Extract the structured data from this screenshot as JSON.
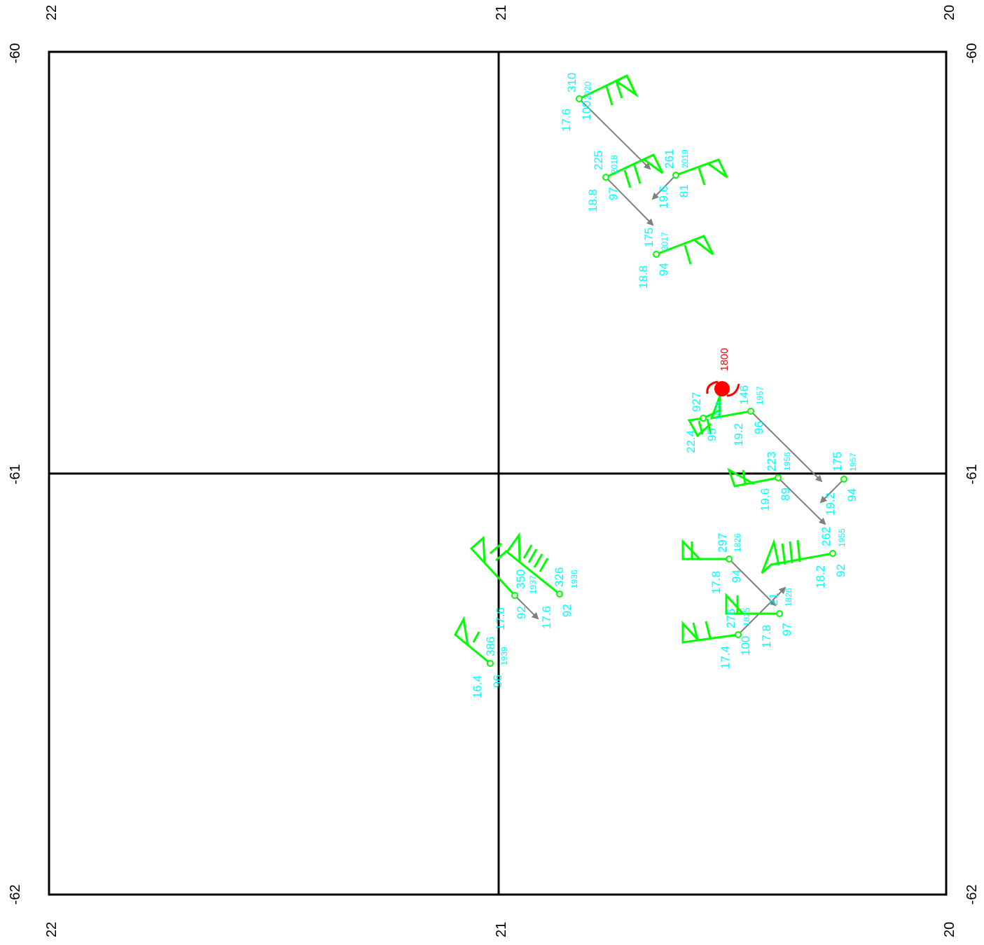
{
  "axes": {
    "lon_labels": [
      "22",
      "21",
      "20"
    ],
    "lat_labels": [
      "-60",
      "-61",
      "-62"
    ]
  },
  "colors": {
    "barb": "#00ff00",
    "text": "#00ffff",
    "motion": "#808080",
    "storm": "#ff0000",
    "frame": "#000000"
  },
  "storm": {
    "icon": "tropical-cyclone-icon",
    "label": "1800"
  },
  "observations": [
    {
      "id": "2020",
      "top": "310",
      "left": "17.6",
      "bottom": "100"
    },
    {
      "id": "2018",
      "top": "225",
      "left": "18.8",
      "bottom": "97"
    },
    {
      "id": "2019",
      "top": "261",
      "left": "19.6",
      "bottom": "81"
    },
    {
      "id": "2017",
      "top": "175",
      "left": "18.8",
      "bottom": "94"
    },
    {
      "id": "1957",
      "top": "146",
      "left": "19.2",
      "bottom": "96"
    },
    {
      "id": "1920",
      "top": "927",
      "left": "22.4",
      "bottom": "95"
    },
    {
      "id": "1956",
      "top": "223",
      "left": "19.6",
      "bottom": "89"
    },
    {
      "id": "1957",
      "top": "175",
      "left": "19.2",
      "bottom": "94"
    },
    {
      "id": "1955",
      "top": "262",
      "left": "18.2",
      "bottom": "92"
    },
    {
      "id": "1826",
      "top": "297",
      "left": "17.8",
      "bottom": "94"
    },
    {
      "id": "1826",
      "top": "21",
      "left": "17.8",
      "bottom": "97"
    },
    {
      "id": "1825",
      "top": "276",
      "left": "17.4",
      "bottom": "100"
    },
    {
      "id": "1937",
      "top": "350",
      "left": "17.6",
      "bottom": "92"
    },
    {
      "id": "1936",
      "top": "326",
      "left": "17.6",
      "bottom": "92"
    },
    {
      "id": "1939",
      "top": "386",
      "left": "16.4",
      "bottom": "96"
    }
  ]
}
